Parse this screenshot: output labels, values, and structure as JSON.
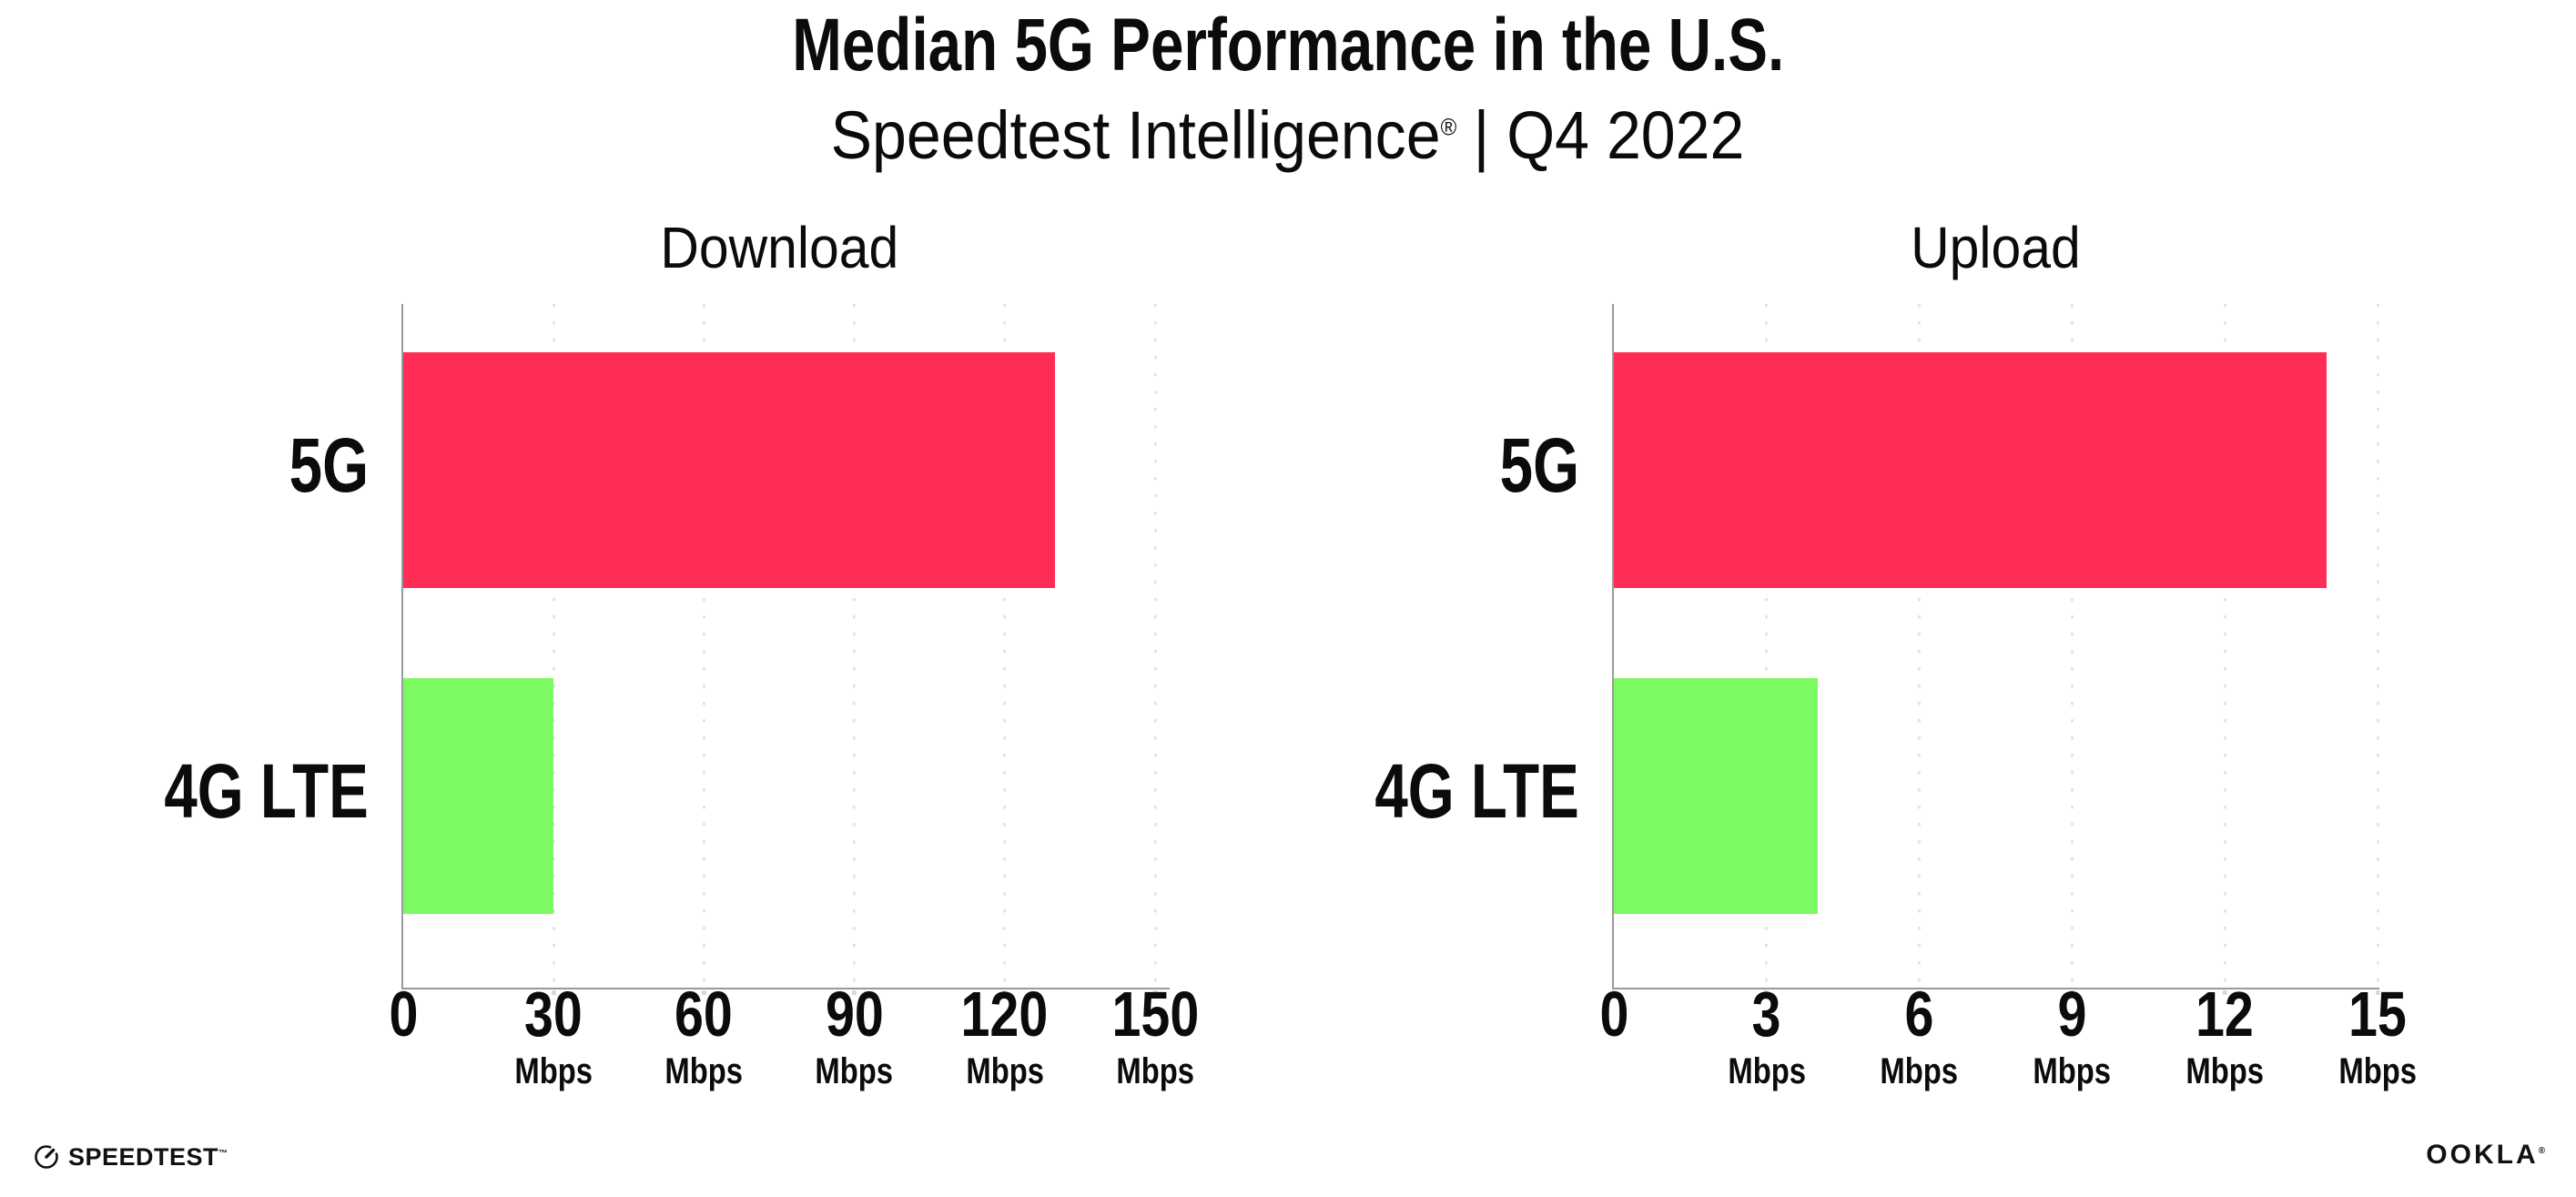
{
  "header": {
    "title": "Median 5G Performance in the U.S.",
    "subtitle_brand": "Speedtest Intelligence",
    "subtitle_reg": "®",
    "subtitle_rest": "| Q4 2022"
  },
  "colors": {
    "background": "#FFFFFF",
    "text": "#0B0B0B",
    "bar_5g": "#FF2D55",
    "bar_4g": "#7BFA62",
    "gridline": "#E3E3EF",
    "axis_line": "#9A9A9A"
  },
  "chart_data": [
    {
      "type": "bar",
      "orientation": "horizontal",
      "title": "Download",
      "categories": [
        "5G",
        "4G LTE"
      ],
      "values": [
        130,
        30
      ],
      "unit": "Mbps",
      "xlim": [
        0,
        150
      ],
      "xticks": [
        0,
        30,
        60,
        90,
        120,
        150
      ],
      "grid": "vertical-dotted",
      "legend": "none"
    },
    {
      "type": "bar",
      "orientation": "horizontal",
      "title": "Upload",
      "categories": [
        "5G",
        "4G LTE"
      ],
      "values": [
        14,
        4
      ],
      "unit": "Mbps",
      "xlim": [
        0,
        15
      ],
      "xticks": [
        0,
        3,
        6,
        9,
        12,
        15
      ],
      "grid": "vertical-dotted",
      "legend": "none"
    }
  ],
  "footer": {
    "speedtest_label": "SPEEDTEST",
    "speedtest_tm": "™",
    "ookla_label": "OOKLA",
    "ookla_reg": "®"
  }
}
